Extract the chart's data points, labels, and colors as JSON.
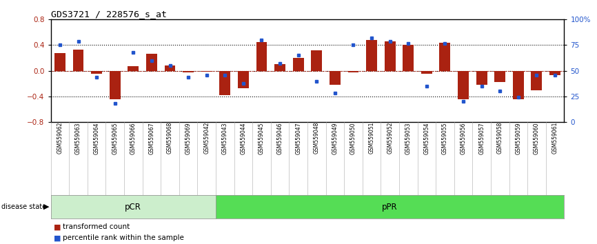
{
  "title": "GDS3721 / 228576_s_at",
  "samples": [
    "GSM559062",
    "GSM559063",
    "GSM559064",
    "GSM559065",
    "GSM559066",
    "GSM559067",
    "GSM559068",
    "GSM559069",
    "GSM559042",
    "GSM559043",
    "GSM559044",
    "GSM559045",
    "GSM559046",
    "GSM559047",
    "GSM559048",
    "GSM559049",
    "GSM559050",
    "GSM559051",
    "GSM559052",
    "GSM559053",
    "GSM559054",
    "GSM559055",
    "GSM559056",
    "GSM559057",
    "GSM559058",
    "GSM559059",
    "GSM559060",
    "GSM559061"
  ],
  "transformed_count": [
    0.28,
    0.33,
    -0.05,
    -0.44,
    0.07,
    0.27,
    0.08,
    -0.02,
    -0.01,
    -0.38,
    -0.27,
    0.45,
    0.1,
    0.2,
    0.32,
    -0.22,
    -0.02,
    0.48,
    0.46,
    0.4,
    -0.05,
    0.44,
    -0.44,
    -0.22,
    -0.18,
    -0.44,
    -0.3,
    -0.07
  ],
  "percentile_rank": [
    75,
    79,
    44,
    18,
    68,
    60,
    55,
    44,
    46,
    46,
    38,
    80,
    57,
    65,
    40,
    28,
    75,
    82,
    79,
    77,
    35,
    77,
    20,
    35,
    30,
    24,
    46,
    46
  ],
  "pcr_count": 9,
  "ppr_count": 19,
  "bar_color": "#aa2211",
  "dot_color": "#2255cc",
  "pcr_color": "#cceecc",
  "ppr_color": "#55dd55",
  "ylim": [
    -0.8,
    0.8
  ],
  "y2lim": [
    0,
    100
  ],
  "yticks_left": [
    -0.8,
    -0.4,
    0.0,
    0.4,
    0.8
  ],
  "yticks_right": [
    0,
    25,
    50,
    75,
    100
  ],
  "ytick_labels_right": [
    "0",
    "25",
    "50",
    "75",
    "100%"
  ],
  "hlines": [
    -0.4,
    0.0,
    0.4
  ],
  "bar_width": 0.6,
  "bg_color": "#f5f5f5"
}
